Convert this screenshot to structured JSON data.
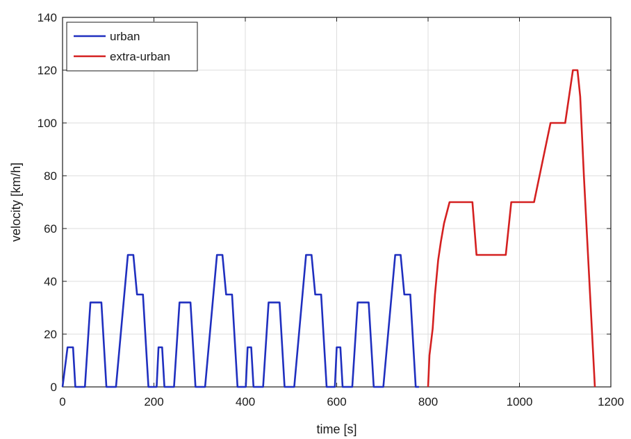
{
  "chart_data": {
    "type": "line",
    "xlabel": "time [s]",
    "ylabel": "velocity [km/h]",
    "xlim": [
      0,
      1200
    ],
    "ylim": [
      0,
      140
    ],
    "xticks": [
      0,
      200,
      400,
      600,
      800,
      1000,
      1200
    ],
    "yticks": [
      0,
      20,
      40,
      60,
      80,
      100,
      120,
      140
    ],
    "grid": true,
    "legend_position": "top-left",
    "series": [
      {
        "name": "urban",
        "color": "#1f2fbf",
        "x": [
          0,
          11,
          15,
          23,
          28,
          49,
          61,
          85,
          96,
          117,
          143,
          155,
          163,
          176,
          188,
          195,
          206,
          210,
          218,
          223,
          244,
          256,
          280,
          291,
          312,
          338,
          350,
          358,
          371,
          383,
          390,
          401,
          405,
          413,
          418,
          439,
          451,
          475,
          486,
          507,
          533,
          545,
          553,
          566,
          578,
          585,
          596,
          600,
          608,
          613,
          634,
          646,
          670,
          681,
          702,
          728,
          740,
          748,
          761,
          773,
          780
        ],
        "y": [
          0,
          15,
          15,
          15,
          0,
          0,
          32,
          32,
          0,
          0,
          50,
          50,
          35,
          35,
          0,
          0,
          0,
          15,
          15,
          0,
          0,
          32,
          32,
          0,
          0,
          50,
          50,
          35,
          35,
          0,
          0,
          0,
          15,
          15,
          0,
          0,
          32,
          32,
          0,
          0,
          50,
          50,
          35,
          35,
          0,
          0,
          0,
          15,
          15,
          0,
          0,
          32,
          32,
          0,
          0,
          50,
          50,
          35,
          35,
          0,
          0
        ]
      },
      {
        "name": "extra-urban",
        "color": "#d42020",
        "x": [
          800,
          803,
          810,
          815,
          822,
          828,
          835,
          847,
          897,
          906,
          970,
          982,
          1032,
          1068,
          1100,
          1117,
          1127,
          1133,
          1141,
          1165
        ],
        "y": [
          0,
          12,
          22,
          35,
          48,
          55,
          62,
          70,
          70,
          50,
          50,
          70,
          70,
          100,
          100,
          120,
          120,
          110,
          80,
          0
        ]
      }
    ]
  }
}
